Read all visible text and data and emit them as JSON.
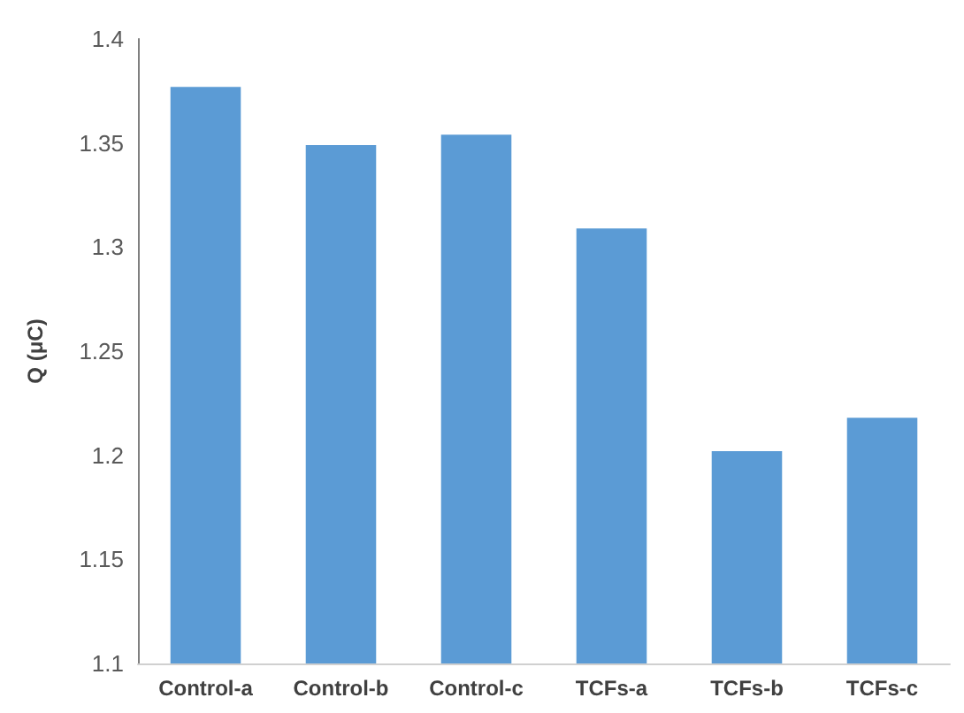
{
  "chart_data": {
    "type": "bar",
    "ylabel": "Q (μC)",
    "categories": [
      "Control-a",
      "Control-b",
      "Control-c",
      "TCFs-a",
      "TCFs-b",
      "TCFs-c"
    ],
    "values": [
      1.377,
      1.349,
      1.354,
      1.309,
      1.202,
      1.218
    ],
    "color": "#5b9bd5",
    "ylim": [
      1.1,
      1.4
    ],
    "yticks": [
      1.1,
      1.15,
      1.2,
      1.25,
      1.3,
      1.35,
      1.4
    ],
    "grid": false
  }
}
